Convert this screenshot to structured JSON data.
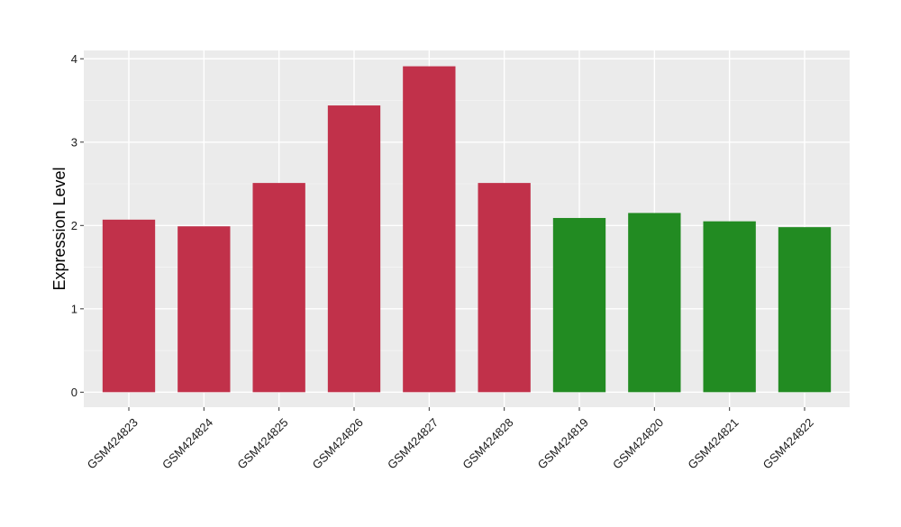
{
  "chart_data": {
    "type": "bar",
    "title": "",
    "xlabel": "",
    "ylabel": "Expression Level",
    "ylim": [
      -0.18,
      4.1
    ],
    "yticks": [
      0,
      1,
      2,
      3,
      4
    ],
    "grid": true,
    "legend": "none",
    "categories": [
      "GSM424823",
      "GSM424824",
      "GSM424825",
      "GSM424826",
      "GSM424827",
      "GSM424828",
      "GSM424819",
      "GSM424820",
      "GSM424821",
      "GSM424822"
    ],
    "values": [
      2.07,
      1.99,
      2.51,
      3.44,
      3.91,
      2.51,
      2.09,
      2.15,
      2.05,
      1.98
    ],
    "bar_colors": [
      "#c1314a",
      "#c1314a",
      "#c1314a",
      "#c1314a",
      "#c1314a",
      "#c1314a",
      "#228b22",
      "#228b22",
      "#228b22",
      "#228b22"
    ]
  },
  "colors": {
    "panel_background": "#ebebeb",
    "gridline_major": "#ffffff",
    "gridline_minor": "#f5f5f5"
  }
}
